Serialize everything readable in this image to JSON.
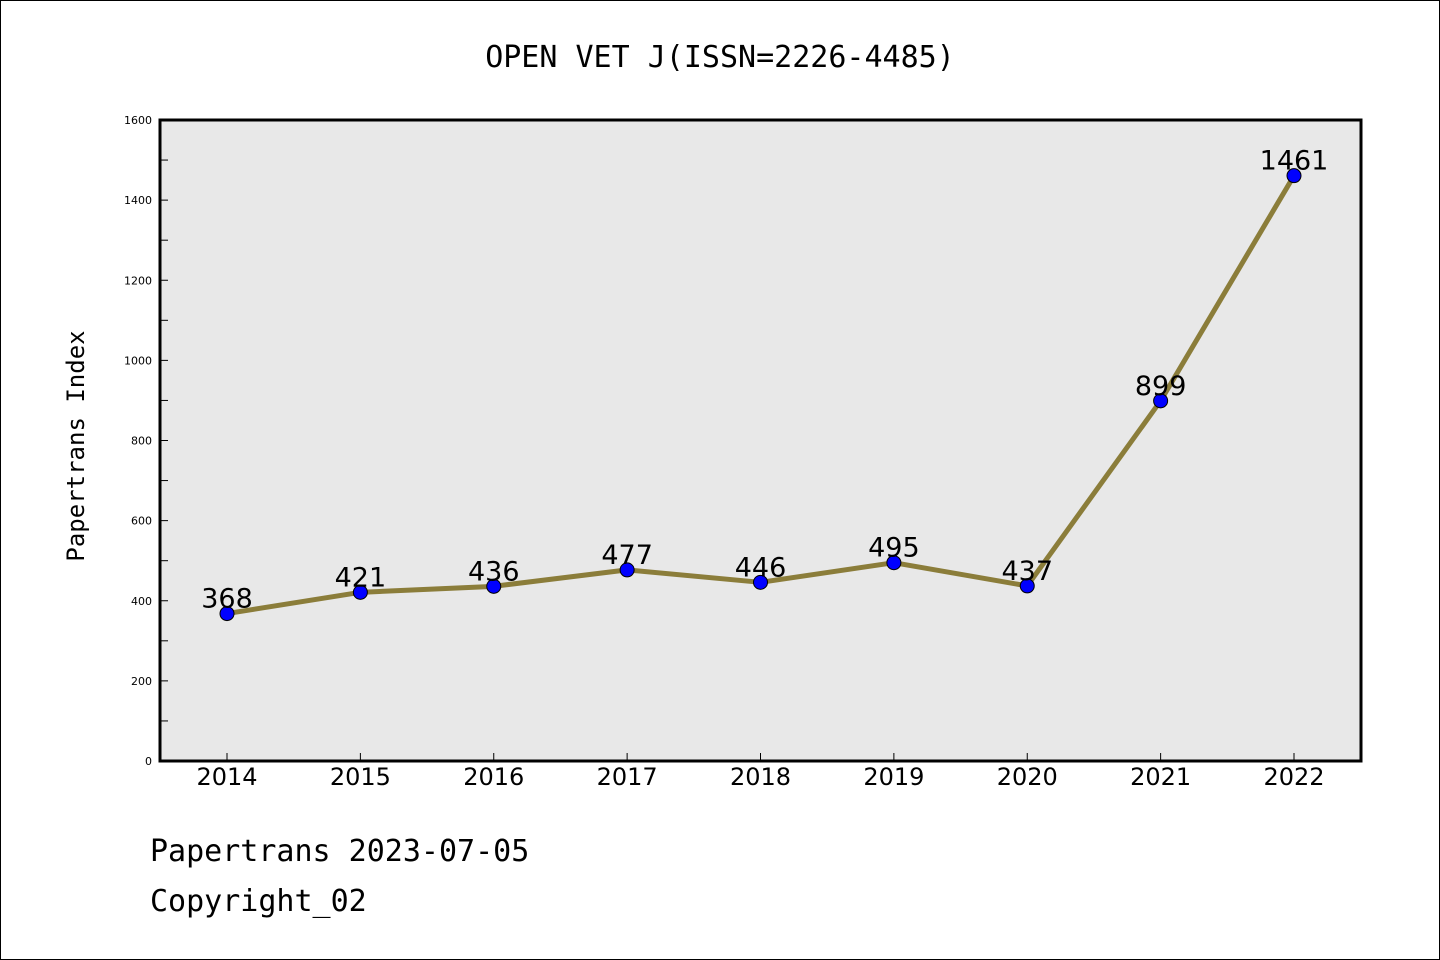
{
  "chart_data": {
    "type": "line",
    "title": "OPEN VET J(ISSN=2226-4485)",
    "xlabel": "",
    "ylabel": "Papertrans Index",
    "categories": [
      "2014",
      "2015",
      "2016",
      "2017",
      "2018",
      "2019",
      "2020",
      "2021",
      "2022"
    ],
    "series": [
      {
        "values": [
          368,
          421,
          436,
          477,
          446,
          495,
          437,
          899,
          1461
        ],
        "data_labels": [
          "368",
          "421",
          "436",
          "477",
          "446",
          "495",
          "437",
          "899",
          "1461"
        ]
      }
    ],
    "ylim": [
      0,
      1600
    ],
    "yticks": [
      "0",
      "200",
      "400",
      "600",
      "800",
      "1000",
      "1200",
      "1400",
      "1600"
    ],
    "grid": false,
    "legend": "none",
    "colors": {
      "line": "#8b7d3a",
      "marker": "#0000ff",
      "plot_background": "#e8e8e8"
    }
  },
  "footer": {
    "line1": "Papertrans 2023-07-05",
    "line2": "Copyright_02"
  }
}
